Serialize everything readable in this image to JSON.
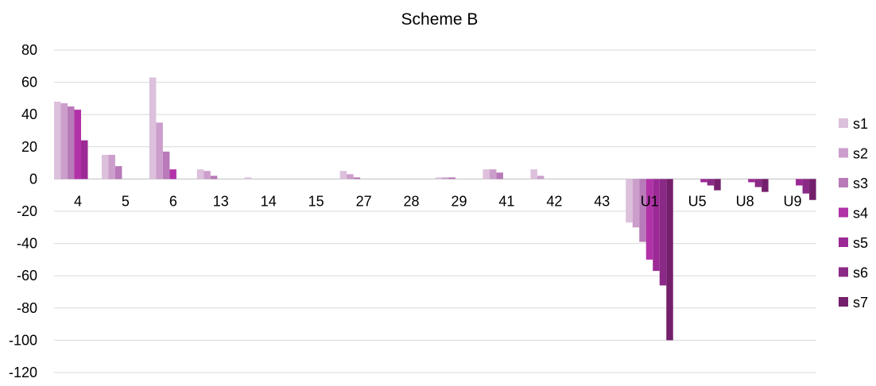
{
  "chart_data": {
    "type": "bar",
    "title": "Scheme B",
    "xlabel": "",
    "ylabel": "",
    "ylim": [
      -120,
      80
    ],
    "yticks": [
      80,
      60,
      40,
      20,
      0,
      -20,
      -40,
      -60,
      -80,
      -100,
      -120
    ],
    "grid": true,
    "legend_position": "right",
    "categories": [
      "4",
      "5",
      "6",
      "13",
      "14",
      "15",
      "27",
      "28",
      "29",
      "41",
      "42",
      "43",
      "U1",
      "U5",
      "U8",
      "U9"
    ],
    "series": [
      {
        "name": "s1",
        "color": "#dcc0dc",
        "values": [
          48,
          15,
          63,
          6,
          1,
          0,
          5,
          0,
          1,
          6,
          6,
          0,
          -27,
          0,
          0,
          0
        ]
      },
      {
        "name": "s2",
        "color": "#cc9ecc",
        "values": [
          47,
          15,
          35,
          5,
          0,
          0,
          3,
          0,
          1,
          6,
          2,
          0,
          -30,
          0,
          0,
          0
        ]
      },
      {
        "name": "s3",
        "color": "#b87ab8",
        "values": [
          45,
          8,
          17,
          2,
          0,
          0,
          1,
          0,
          1,
          4,
          0,
          0,
          -39,
          0,
          0,
          0
        ]
      },
      {
        "name": "s4",
        "color": "#b232a8",
        "values": [
          43,
          0,
          6,
          0,
          0,
          0,
          0,
          0,
          0,
          0,
          0,
          0,
          -50,
          0,
          0,
          0
        ]
      },
      {
        "name": "s5",
        "color": "#9c2a96",
        "values": [
          24,
          0,
          0,
          0,
          0,
          0,
          0,
          0,
          0,
          0,
          0,
          0,
          -57,
          -2,
          -2,
          -4
        ]
      },
      {
        "name": "s6",
        "color": "#8a2a86",
        "values": [
          0,
          0,
          0,
          0,
          0,
          0,
          0,
          0,
          0,
          0,
          0,
          0,
          -66,
          -4,
          -5,
          -9
        ]
      },
      {
        "name": "s7",
        "color": "#741f6c",
        "values": [
          0,
          0,
          0,
          0,
          0,
          0,
          0,
          0,
          0,
          0,
          0,
          0,
          -100,
          -7,
          -8,
          -13
        ]
      }
    ]
  }
}
